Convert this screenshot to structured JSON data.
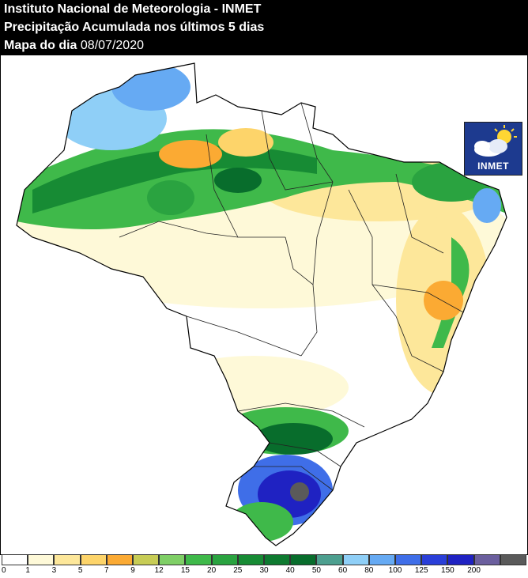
{
  "header": {
    "line1": "Instituto Nacional de Meteorologia - INMET",
    "line2": "Precipitação Acumulada nos últimos 5 dias",
    "line3_prefix": "Mapa do dia",
    "date": "08/07/2020"
  },
  "logo": {
    "text": "INMET",
    "icon": "cloud-sun-icon"
  },
  "legend": {
    "colors": [
      "#ffffff",
      "#fef9d8",
      "#fde79a",
      "#fdd46a",
      "#fbaa33",
      "#c7cc55",
      "#7fcf66",
      "#3fb94a",
      "#2aa340",
      "#178b34",
      "#0e7a30",
      "#086d2c",
      "#4d9f8f",
      "#8fcff7",
      "#66aaf3",
      "#3f6ee8",
      "#2a3fd8",
      "#1f22c2",
      "#6b5f9e",
      "#5a5a5a"
    ],
    "labels": [
      "0",
      "1",
      "3",
      "5",
      "7",
      "9",
      "12",
      "15",
      "20",
      "25",
      "30",
      "40",
      "50",
      "60",
      "80",
      "100",
      "125",
      "150",
      "200"
    ]
  }
}
